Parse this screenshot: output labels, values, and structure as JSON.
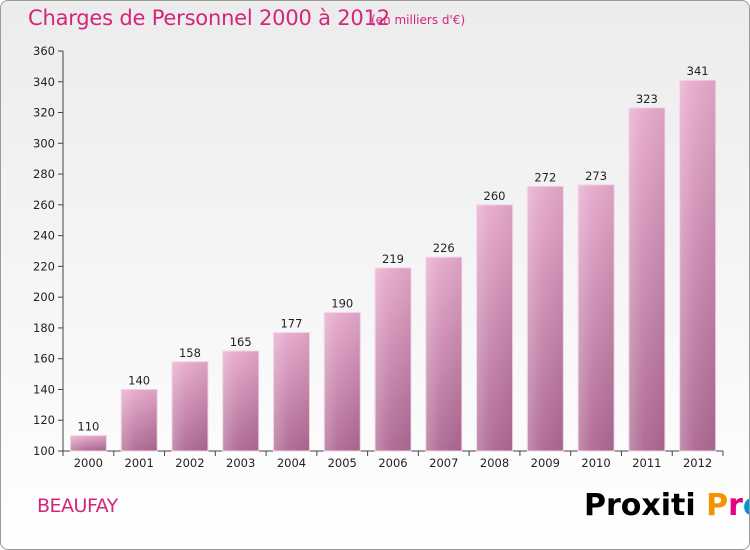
{
  "header": {
    "title": "Charges de Personnel 2000 à 2012",
    "subtitle": "(en milliers d'€)"
  },
  "footer": {
    "commune": "BEAUFAY",
    "logo_text": "Proxiti"
  },
  "colors": {
    "accent": "#d4257a",
    "bar_top": "#e6a9cc",
    "bar_bottom": "#ad6892",
    "logo_letters": [
      "#f29400",
      "#e6007e",
      "#0096d6",
      "#95c11f",
      "#e6007e",
      "#0096d6",
      "#f29400"
    ]
  },
  "chart_data": {
    "type": "bar",
    "categories": [
      "2000",
      "2001",
      "2002",
      "2003",
      "2004",
      "2005",
      "2006",
      "2007",
      "2008",
      "2009",
      "2010",
      "2011",
      "2012"
    ],
    "values": [
      110,
      140,
      158,
      165,
      177,
      190,
      219,
      226,
      260,
      272,
      273,
      323,
      341
    ],
    "ylim": [
      100,
      360
    ],
    "yticks": [
      100,
      120,
      140,
      160,
      180,
      200,
      220,
      240,
      260,
      280,
      300,
      320,
      340,
      360
    ],
    "grid": false,
    "data_labels": true
  }
}
